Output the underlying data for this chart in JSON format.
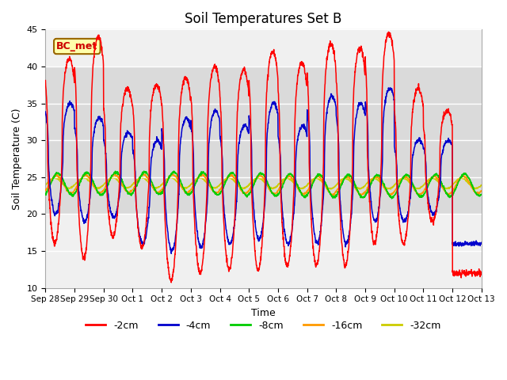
{
  "title": "Soil Temperatures Set B",
  "xlabel": "Time",
  "ylabel": "Soil Temperature (C)",
  "ylim": [
    10,
    45
  ],
  "yticks": [
    10,
    15,
    20,
    25,
    30,
    35,
    40,
    45
  ],
  "label_annotation": "BC_met",
  "x_tick_labels": [
    "Sep 28",
    "Sep 29",
    "Sep 30",
    "Oct 1",
    "Oct 2",
    "Oct 3",
    "Oct 4",
    "Oct 5",
    "Oct 6",
    "Oct 7",
    "Oct 8",
    "Oct 9",
    "Oct 10",
    "Oct 11",
    "Oct 12",
    "Oct 13"
  ],
  "shaded_band": [
    20,
    40
  ],
  "line_colors": {
    "-2cm": "#ff0000",
    "-4cm": "#0000cc",
    "-8cm": "#00cc00",
    "-16cm": "#ff9900",
    "-32cm": "#cccc00"
  },
  "legend_labels": [
    "-2cm",
    "-4cm",
    "-8cm",
    "-16cm",
    "-32cm"
  ],
  "background_color": "#ffffff",
  "plot_bg_color": "#f0f0f0",
  "peak_2cm": [
    41,
    44,
    37,
    37.5,
    38.5,
    40,
    39.5,
    42,
    40.5,
    43,
    42.5,
    44.5,
    37,
    34,
    12
  ],
  "min_2cm": [
    16,
    14,
    17,
    15.5,
    11,
    12,
    12.5,
    12.5,
    13,
    13,
    13,
    16,
    16,
    19,
    12
  ],
  "peak_4cm": [
    35,
    33,
    31,
    30,
    33,
    34,
    32,
    35,
    32,
    36,
    35,
    37,
    30,
    30,
    16
  ],
  "min_4cm": [
    20,
    19,
    19.5,
    16,
    15,
    15.5,
    16,
    16.5,
    16,
    16,
    16,
    19,
    19,
    20,
    16
  ],
  "base_8cm": 24.0,
  "amp_8cm": 1.5,
  "base_16cm": 24.0,
  "amp_16cm": 1.2,
  "base_32cm": 24.2,
  "amp_32cm": 0.7
}
